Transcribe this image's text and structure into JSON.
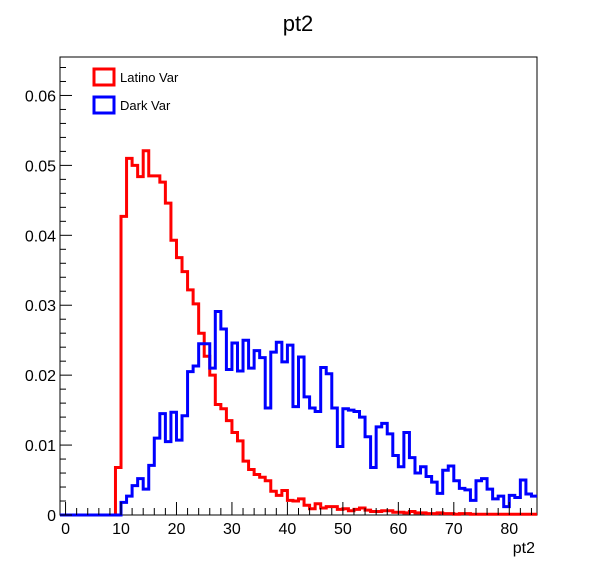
{
  "chart_data": {
    "type": "histogram",
    "title": "pt2",
    "xlabel": "pt2",
    "ylabel": "",
    "xlim": [
      -1,
      85
    ],
    "ylim": [
      0,
      0.0655
    ],
    "x_ticks": [
      0,
      10,
      20,
      30,
      40,
      50,
      60,
      70,
      80
    ],
    "y_ticks": [
      0,
      0.01,
      0.02,
      0.03,
      0.04,
      0.05,
      0.06
    ],
    "y_tick_labels": [
      "0",
      "0.01",
      "0.02",
      "0.03",
      "0.04",
      "0.05",
      "0.06"
    ],
    "legend_position": "top-left",
    "bin_width": 1,
    "bin_start": -1,
    "series": [
      {
        "name": "Latino Var",
        "color": "#ff0000",
        "values": [
          0,
          0,
          0,
          0,
          0,
          0,
          0,
          0,
          0,
          0,
          0.0068,
          0.0427,
          0.051,
          0.05,
          0.0484,
          0.0521,
          0.0485,
          0.0485,
          0.0476,
          0.0446,
          0.0393,
          0.0368,
          0.0348,
          0.0322,
          0.0302,
          0.026,
          0.0227,
          0.02,
          0.0158,
          0.0152,
          0.0135,
          0.0118,
          0.0106,
          0.0077,
          0.0065,
          0.0058,
          0.0054,
          0.0049,
          0.0034,
          0.0028,
          0.0035,
          0.0021,
          0.002,
          0.0023,
          0.0014,
          0.0009,
          0.0016,
          0.001,
          0.0012,
          0.0012,
          0.0008,
          0.0009,
          0.0006,
          0.0008,
          0.001,
          0.0007,
          0.0005,
          0.0005,
          0.0006,
          0.0006,
          0.0004,
          0.0004,
          0.0003,
          0.0005,
          0.0003,
          0.0003,
          0.0002,
          0.0002,
          0.0003,
          0.0002,
          0.0002,
          0.0001,
          0.0002,
          0.0002,
          0.0001,
          0.0001,
          0.0001,
          0.0001,
          0.0001,
          0.0001,
          0.0001,
          0.0001,
          0.0001,
          0.0001,
          0.0001,
          0.0001
        ]
      },
      {
        "name": "Dark Var",
        "color": "#0000ff",
        "values": [
          0,
          0,
          0,
          0,
          0,
          0,
          0,
          0,
          0,
          0,
          0,
          0.0018,
          0.0027,
          0.0042,
          0.0052,
          0.0037,
          0.0071,
          0.011,
          0.0145,
          0.0105,
          0.0147,
          0.0107,
          0.0142,
          0.0205,
          0.0213,
          0.0245,
          0.0245,
          0.021,
          0.0291,
          0.0266,
          0.0208,
          0.0246,
          0.0206,
          0.025,
          0.021,
          0.0235,
          0.0225,
          0.0153,
          0.0233,
          0.0247,
          0.0219,
          0.0243,
          0.0155,
          0.0226,
          0.0169,
          0.0153,
          0.0148,
          0.0211,
          0.0202,
          0.0153,
          0.0098,
          0.0152,
          0.015,
          0.0148,
          0.014,
          0.0112,
          0.0068,
          0.0126,
          0.0131,
          0.0116,
          0.0085,
          0.0069,
          0.0118,
          0.0082,
          0.006,
          0.0069,
          0.0055,
          0.0047,
          0.0031,
          0.0064,
          0.007,
          0.0049,
          0.0038,
          0.0036,
          0.0021,
          0.0049,
          0.0052,
          0.0037,
          0.0023,
          0.0027,
          0.0012,
          0.0028,
          0.0025,
          0.005,
          0.003,
          0.0027
        ]
      }
    ]
  }
}
